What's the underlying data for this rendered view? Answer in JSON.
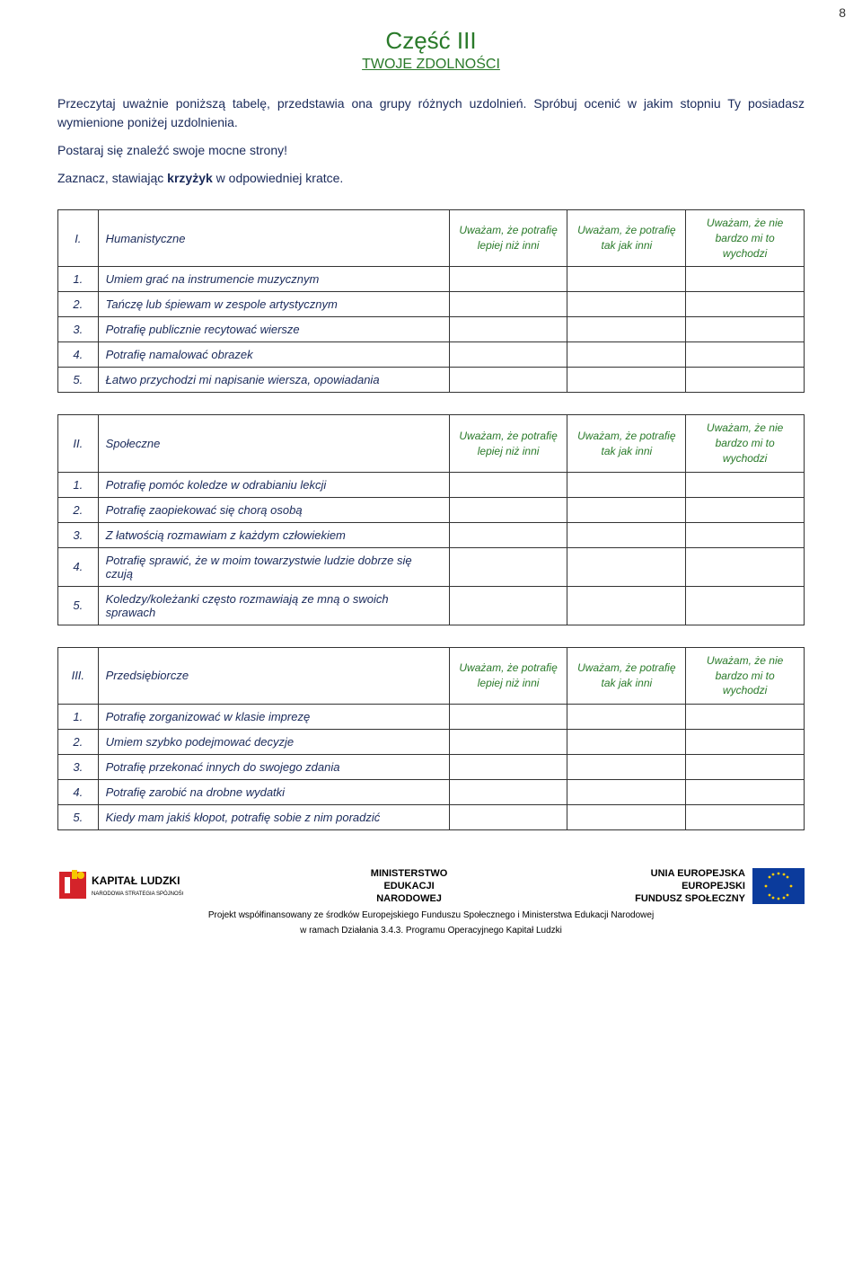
{
  "page_number": "8",
  "title": "Część III",
  "subtitle": "TWOJE ZDOLNOŚCI",
  "intro1_a": "Przeczytaj uważnie poniższą tabelę, przedstawia ona grupy różnych uzdolnień.  Spróbuj ocenić w jakim stopniu Ty posiadasz wymienione poniżej uzdolnienia.",
  "intro2": "Postaraj się znaleźć swoje mocne strony!",
  "intro3_a": "Zaznacz, stawiając ",
  "intro3_b": "krzyżyk",
  "intro3_c": " w odpowiedniej kratce.",
  "colors": {
    "title_green": "#2a7a2a",
    "text_blue": "#1a2a5a",
    "border": "#333333",
    "bg": "#ffffff"
  },
  "option_headers": {
    "opt1": "Uważam, że potrafię  lepiej niż inni",
    "opt2": "Uważam, że potrafię tak jak inni",
    "opt3": "Uważam, że nie bardzo mi to wychodzi"
  },
  "tables": [
    {
      "num": "I.",
      "category": "Humanistyczne",
      "rows": [
        {
          "n": "1.",
          "t": "Umiem grać na instrumencie muzycznym"
        },
        {
          "n": "2.",
          "t": "Tańczę lub śpiewam w zespole artystycznym"
        },
        {
          "n": "3.",
          "t": "Potrafię publicznie recytować wiersze"
        },
        {
          "n": "4.",
          "t": "Potrafię namalować obrazek"
        },
        {
          "n": "5.",
          "t": "Łatwo przychodzi mi napisanie wiersza, opowiadania"
        }
      ]
    },
    {
      "num": "II.",
      "category": "Społeczne",
      "rows": [
        {
          "n": "1.",
          "t": "Potrafię pomóc koledze w odrabianiu lekcji"
        },
        {
          "n": "2.",
          "t": "Potrafię zaopiekować się chorą osobą"
        },
        {
          "n": "3.",
          "t": "Z łatwością rozmawiam z każdym człowiekiem"
        },
        {
          "n": "4.",
          "t": "Potrafię sprawić, że w moim towarzystwie ludzie dobrze się czują"
        },
        {
          "n": "5.",
          "t": "Koledzy/koleżanki często rozmawiają ze mną o swoich sprawach"
        }
      ]
    },
    {
      "num": "III.",
      "category": "Przedsiębiorcze",
      "rows": [
        {
          "n": "1.",
          "t": "Potrafię zorganizować w klasie imprezę"
        },
        {
          "n": "2.",
          "t": "Umiem szybko podejmować decyzje"
        },
        {
          "n": "3.",
          "t": "Potrafię przekonać innych do swojego zdania"
        },
        {
          "n": "4.",
          "t": "Potrafię zarobić na drobne wydatki"
        },
        {
          "n": "5.",
          "t": "Kiedy mam jakiś kłopot, potrafię sobie z nim poradzić"
        }
      ]
    }
  ],
  "footer": {
    "ministry_l1": "MINISTERSTWO",
    "ministry_l2": "EDUKACJI",
    "ministry_l3": "NARODOWEJ",
    "eu_l1": "UNIA EUROPEJSKA",
    "eu_l2": "EUROPEJSKI",
    "eu_l3": "FUNDUSZ SPOŁECZNY",
    "kl_label": "KAPITAŁ LUDZKI",
    "kl_sub": "NARODOWA STRATEGIA SPÓJNOŚCI",
    "line1": "Projekt współfinansowany ze środków Europejskiego Funduszu Społecznego i Ministerstwa Edukacji Narodowej",
    "line2": "w ramach Działania 3.4.3. Programu Operacyjnego Kapitał Ludzki"
  }
}
